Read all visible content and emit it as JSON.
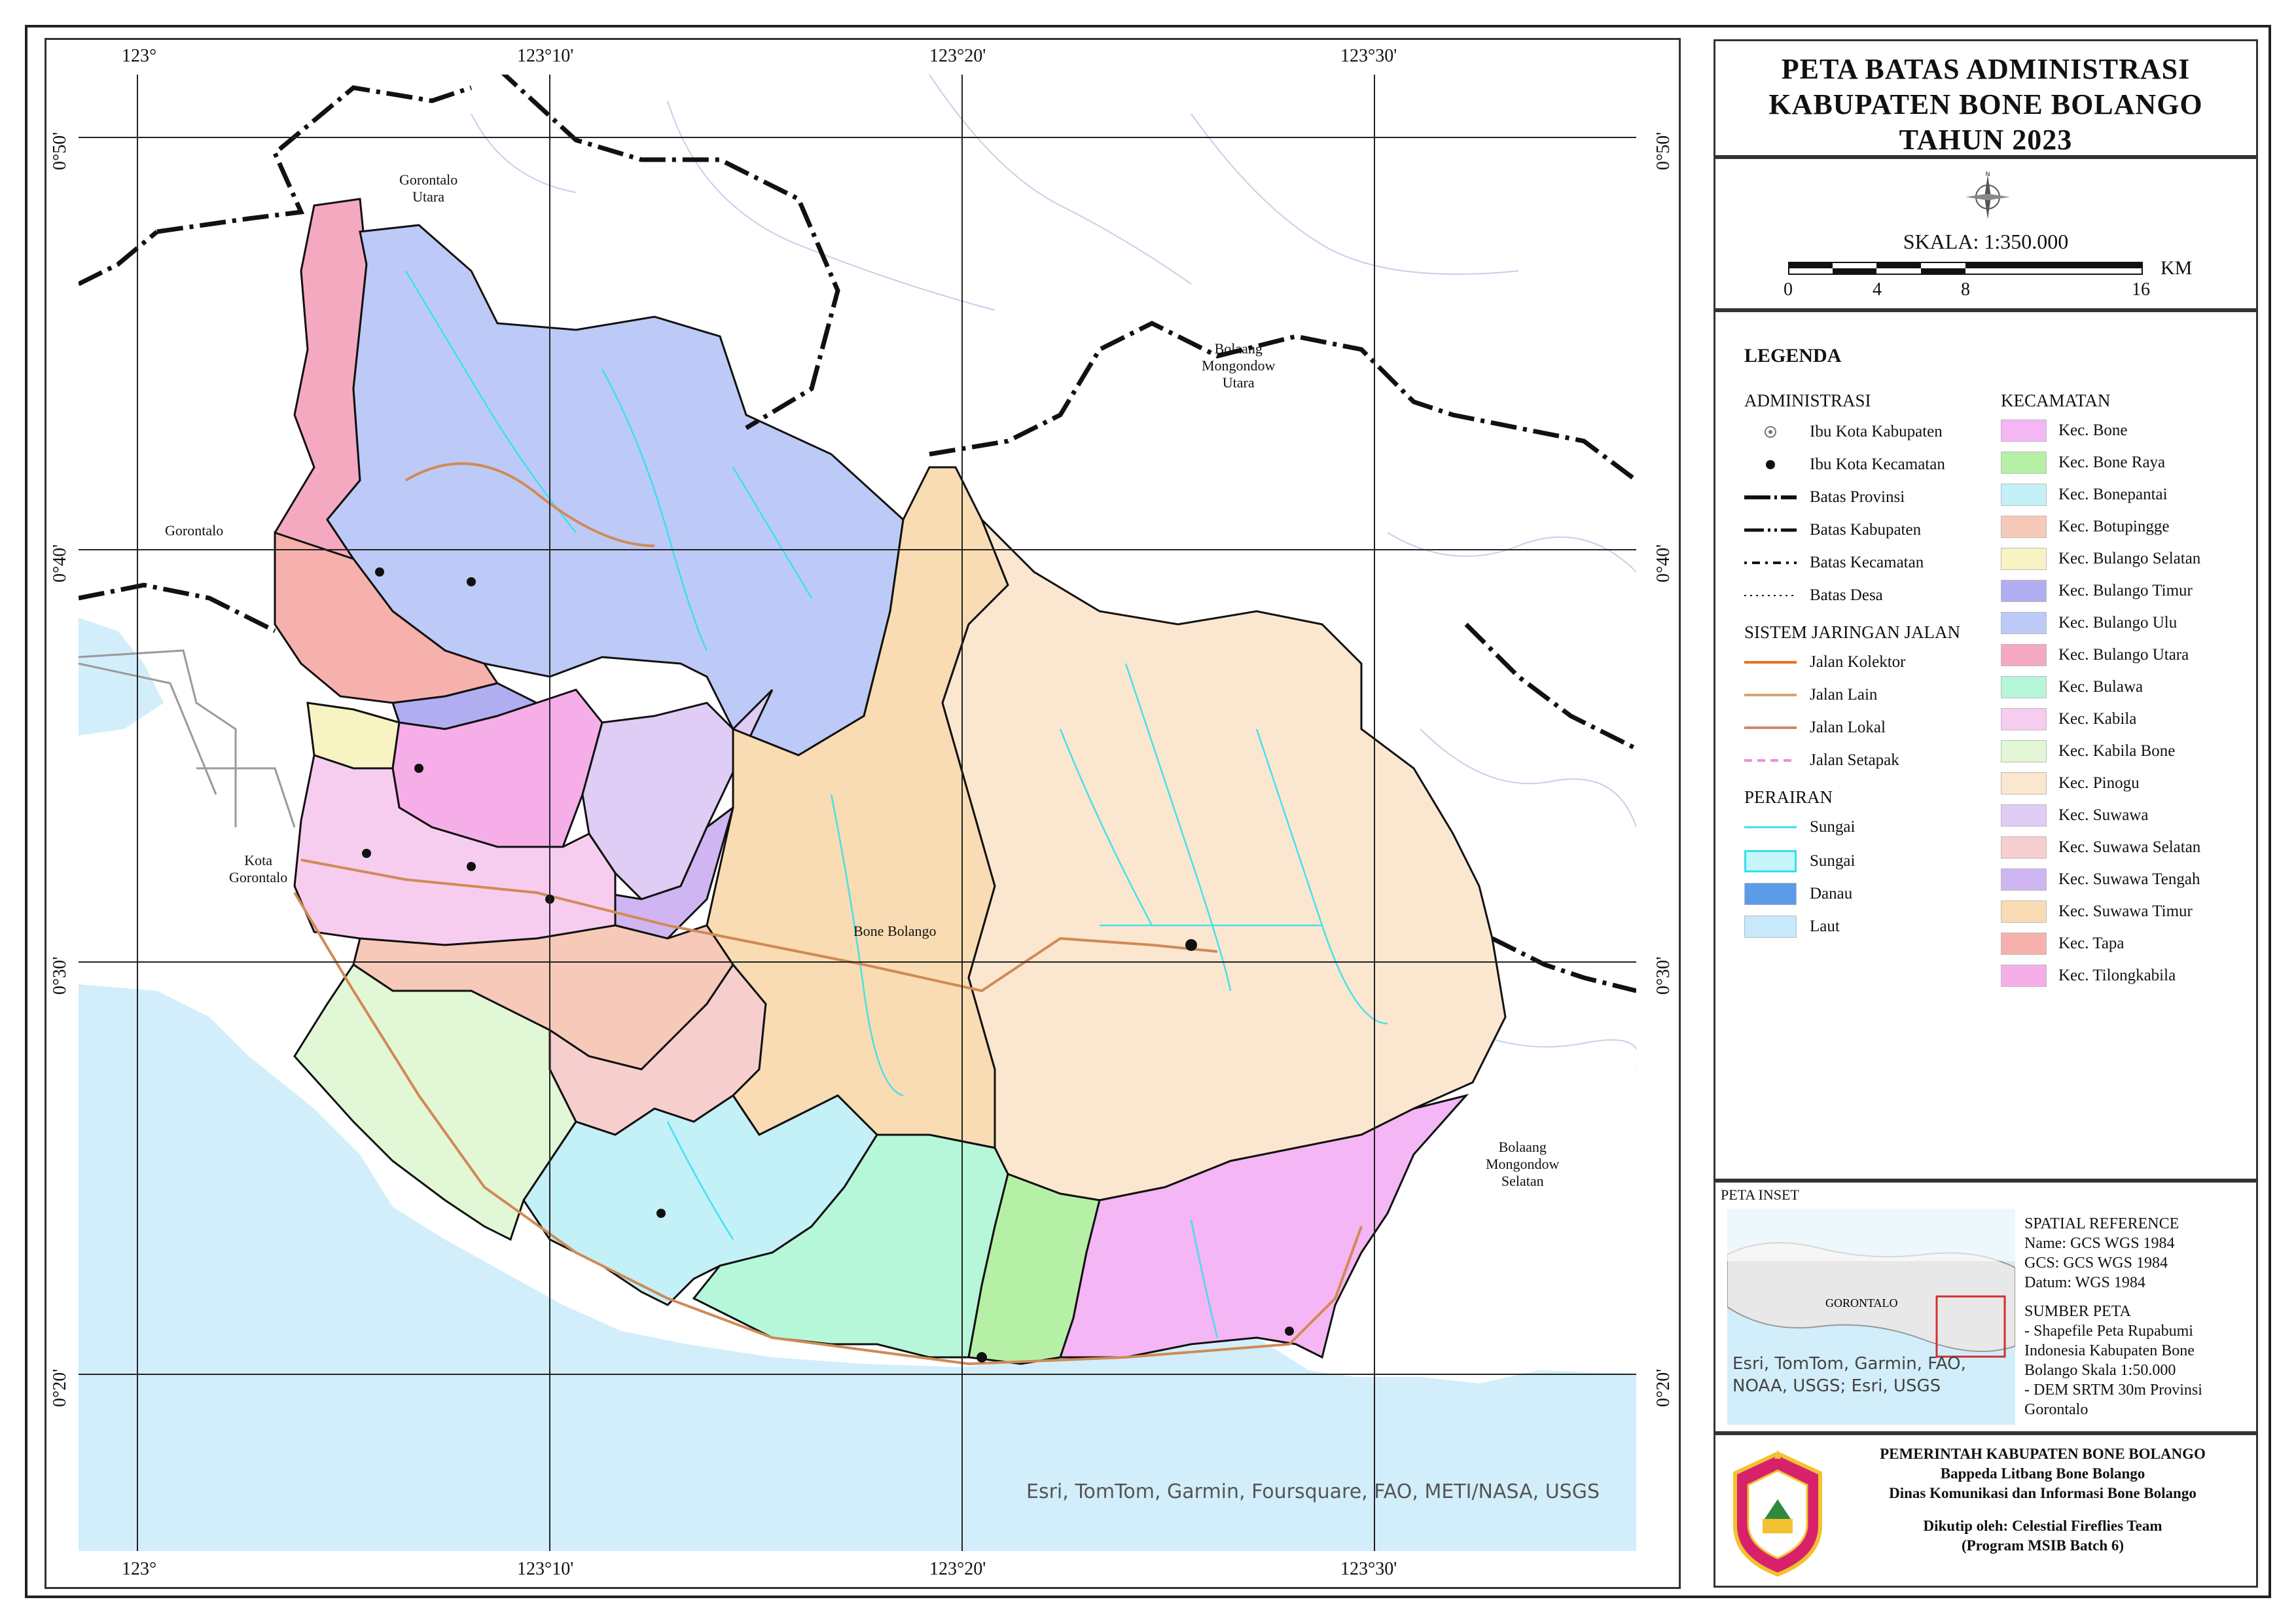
{
  "title": {
    "line1": "PETA BATAS ADMINISTRASI",
    "line2": "KABUPATEN BONE BOLANGO",
    "line3": "TAHUN 2023"
  },
  "north_arrow": {
    "icon": "compass-rose-icon",
    "n": "N",
    "s": "S",
    "e": "E",
    "w": "W"
  },
  "scale": {
    "label": "SKALA: 1:350.000",
    "unit": "KM",
    "ticks": [
      "0",
      "4",
      "8",
      "16"
    ]
  },
  "coordinates": {
    "top": [
      "123°",
      "123°10'",
      "123°20'",
      "123°30'"
    ],
    "bottom": [
      "123°",
      "123°10'",
      "123°20'",
      "123°30'"
    ],
    "left": [
      "0°50'",
      "0°40'",
      "0°30'",
      "0°20'"
    ],
    "right": [
      "0°50'",
      "0°40'",
      "0°30'",
      "0°20'"
    ]
  },
  "map_labels": {
    "gorontalo_utara": "Gorontalo\nUtara",
    "gorontalo": "Gorontalo",
    "kota_gorontalo": "Kota\nGorontalo",
    "bolaang_utara": "Bolaang\nMongondow\nUtara",
    "bolaang_selatan": "Bolaang\nMongondow\nSelatan",
    "bone_bolango": "Bone Bolango"
  },
  "attribution": "Esri, TomTom, Garmin, Foursquare, FAO, METI/NASA, USGS",
  "legend": {
    "title": "LEGENDA",
    "administrasi_head": "ADMINISTRASI",
    "administrasi": [
      {
        "label": "Ibu Kota Kabupaten",
        "icon": "capital-regency-icon"
      },
      {
        "label": "Ibu Kota Kecamatan",
        "icon": "capital-district-icon"
      },
      {
        "label": "Batas Provinsi",
        "icon": "province-boundary-icon"
      },
      {
        "label": "Batas Kabupaten",
        "icon": "regency-boundary-icon"
      },
      {
        "label": "Batas Kecamatan",
        "icon": "district-boundary-icon"
      },
      {
        "label": "Batas Desa",
        "icon": "village-boundary-icon"
      }
    ],
    "jalan_head": "SISTEM JARINGAN JALAN",
    "jalan": [
      {
        "label": "Jalan Kolektor",
        "color": "#e8701e"
      },
      {
        "label": "Jalan Lain",
        "color": "#d4a373"
      },
      {
        "label": "Jalan Lokal",
        "color": "#c98a6b"
      },
      {
        "label": "Jalan Setapak",
        "color": "#f28be0"
      }
    ],
    "perairan_head": "PERAIRAN",
    "perairan": [
      {
        "label": "Sungai",
        "kind": "line",
        "color": "#33e0f0"
      },
      {
        "label": "Sungai",
        "kind": "fill",
        "color": "#c6f6fb"
      },
      {
        "label": "Danau",
        "kind": "fill",
        "color": "#5b9be8"
      },
      {
        "label": "Laut",
        "kind": "fill",
        "color": "#c7e9fb"
      }
    ],
    "kecamatan_head": "KECAMATAN",
    "kecamatan": [
      {
        "label": "Kec. Bone",
        "color": "#f4b6f4"
      },
      {
        "label": "Kec. Bone Raya",
        "color": "#b6f0a6"
      },
      {
        "label": "Kec. Bonepantai",
        "color": "#c4f0f7"
      },
      {
        "label": "Kec. Botupingge",
        "color": "#f7c9b8"
      },
      {
        "label": "Kec. Bulango Selatan",
        "color": "#f7f3c3"
      },
      {
        "label": "Kec. Bulango Timur",
        "color": "#b0aef0"
      },
      {
        "label": "Kec. Bulango Ulu",
        "color": "#bdcaf7"
      },
      {
        "label": "Kec. Bulango Utara",
        "color": "#f5a9c1"
      },
      {
        "label": "Kec. Bulawa",
        "color": "#b6f7d9"
      },
      {
        "label": "Kec. Kabila",
        "color": "#f7cdef"
      },
      {
        "label": "Kec. Kabila Bone",
        "color": "#e2f7d6"
      },
      {
        "label": "Kec. Pinogu",
        "color": "#fbe7cf"
      },
      {
        "label": "Kec. Suwawa",
        "color": "#dfcdf5"
      },
      {
        "label": "Kec. Suwawa Selatan",
        "color": "#f7cece"
      },
      {
        "label": "Kec. Suwawa Tengah",
        "color": "#cfb6f2"
      },
      {
        "label": "Kec. Suwawa Timur",
        "color": "#f9dcb3"
      },
      {
        "label": "Kec. Tapa",
        "color": "#f7b1ad"
      },
      {
        "label": "Kec. Tilongkabila",
        "color": "#f6aee8"
      }
    ]
  },
  "inset": {
    "title": "PETA INSET",
    "label": "GORONTALO",
    "attribution": "Esri, TomTom, Garmin, FAO, NOAA, USGS; Esri, USGS",
    "spatial_head": "SPATIAL REFERENCE",
    "spatial": [
      "Name: GCS WGS 1984",
      "GCS: GCS WGS 1984",
      "Datum: WGS 1984"
    ],
    "source_head": "SUMBER PETA",
    "source": [
      "- Shapefile Peta Rupabumi",
      "Indonesia Kabupaten Bone",
      "Bolango Skala 1:50.000",
      "- DEM SRTM 30m Provinsi",
      "Gorontalo"
    ]
  },
  "credits": {
    "logo_icon": "regency-emblem-icon",
    "line1": "PEMERINTAH KABUPATEN BONE BOLANGO",
    "line2": "Bappeda Litbang Bone Bolango",
    "line3": "Dinas Komunikasi dan Informasi Bone Bolango",
    "line4": "Dikutip oleh: Celestial Fireflies Team",
    "line5": "(Program MSIB Batch 6)"
  }
}
